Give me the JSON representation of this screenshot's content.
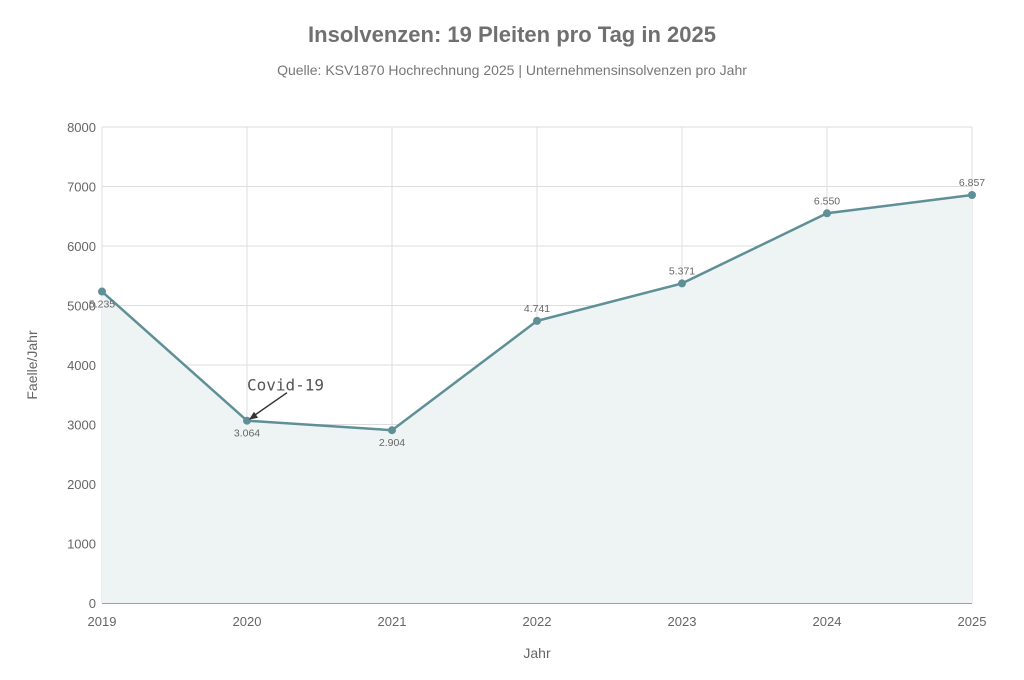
{
  "chart_data": {
    "type": "area",
    "title": "Insolvenzen: 19 Pleiten pro Tag in 2025",
    "subtitle": "Quelle: KSV1870 Hochrechnung 2025 | Unternehmensinsolvenzen pro Jahr",
    "xlabel": "Jahr",
    "ylabel": "Faelle/Jahr",
    "categories": [
      "2019",
      "2020",
      "2021",
      "2022",
      "2023",
      "2024",
      "2025"
    ],
    "values": [
      5235,
      3064,
      2904,
      4741,
      5371,
      6550,
      6857
    ],
    "data_labels": [
      "5.235",
      "3.064",
      "2.904",
      "4.741",
      "5.371",
      "6.550",
      "6.857"
    ],
    "ylim": [
      0,
      8000
    ],
    "yticks": [
      "0",
      "1000",
      "2000",
      "3000",
      "4000",
      "5000",
      "6000",
      "7000",
      "8000"
    ],
    "grid": true,
    "annotation": {
      "text": "Covid-19",
      "category": "2020"
    },
    "colors": {
      "line": "#5f9097",
      "fill": "#eef4f4",
      "grid": "#dddddd"
    }
  }
}
